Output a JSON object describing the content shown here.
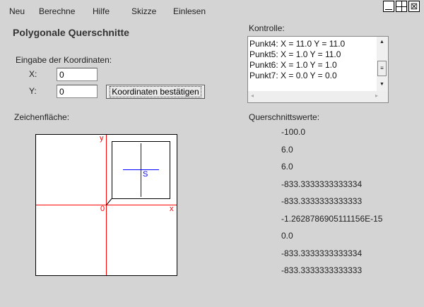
{
  "menu": [
    "Neu",
    "Berechne",
    "Hilfe",
    "Skizze",
    "Einlesen"
  ],
  "title": "Polygonale Querschnitte",
  "input_section": {
    "label": "Eingabe der Koordinaten:",
    "x_label": "X:",
    "x_value": "0",
    "y_label": "Y:",
    "y_value": "0",
    "confirm_label": "Koordinaten bestätigen"
  },
  "kontrolle": {
    "label": "Kontrolle:",
    "lines": [
      "Punkt4: X = 11.0 Y = 11.0",
      "Punkt5: X = 1.0 Y = 11.0",
      "Punkt6: X = 1.0 Y = 1.0",
      "Punkt7: X = 0.0 Y = 0.0"
    ]
  },
  "canvas": {
    "label": "Zeichenfläche:",
    "axis_y": "y",
    "axis_x": "x",
    "origin": "0",
    "centroid": "S",
    "axis_color": "#ff0000",
    "centroid_color": "#0000ff"
  },
  "values": {
    "label": "Querschnittswerte:",
    "items": [
      "-100.0",
      "6.0",
      "6.0",
      "-833.3333333333334",
      "-833.3333333333333",
      "-1.2628786905111156E-15",
      "0.0",
      "-833.3333333333334",
      "-833.3333333333333"
    ]
  }
}
